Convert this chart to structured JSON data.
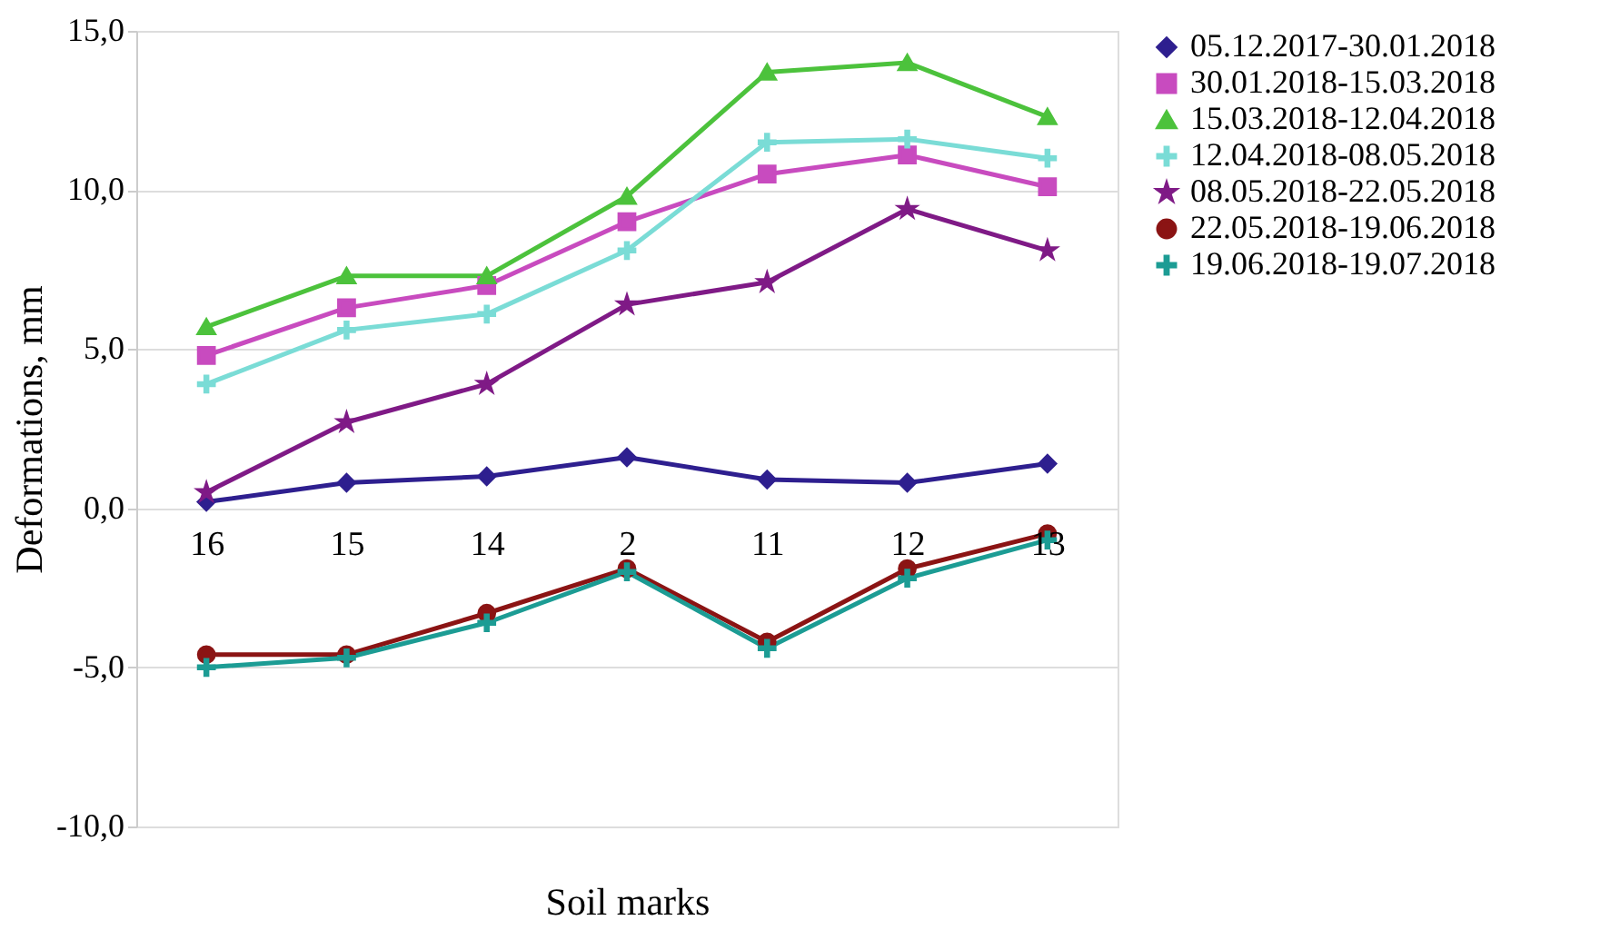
{
  "chart_data": {
    "type": "line",
    "xlabel": "Soil marks",
    "ylabel": "Deformations, mm",
    "categories": [
      "16",
      "15",
      "14",
      "2",
      "11",
      "12",
      "13"
    ],
    "ylim": [
      -10,
      15
    ],
    "yticks": [
      {
        "value": -10,
        "label": "-10,0"
      },
      {
        "value": -5,
        "label": "-5,0"
      },
      {
        "value": 0,
        "label": "0,0"
      },
      {
        "value": 5,
        "label": "5,0"
      },
      {
        "value": 10,
        "label": "10,0"
      },
      {
        "value": 15,
        "label": "15,0"
      }
    ],
    "grid": "y",
    "legend": "right",
    "line_style": "solid",
    "series": [
      {
        "name": "05.12.2017-30.01.2018",
        "color": "#2e1f8f",
        "marker": "diamond",
        "values": [
          0.2,
          0.8,
          1.0,
          1.6,
          0.9,
          0.8,
          1.4
        ]
      },
      {
        "name": "30.01.2018-15.03.2018",
        "color": "#c84bbf",
        "marker": "square",
        "values": [
          4.8,
          6.3,
          7.0,
          9.0,
          10.5,
          11.1,
          10.1
        ]
      },
      {
        "name": "15.03.2018-12.04.2018",
        "color": "#4cc23c",
        "marker": "triangle",
        "values": [
          5.7,
          7.3,
          7.3,
          9.8,
          13.7,
          14.0,
          12.3
        ]
      },
      {
        "name": "12.04.2018-08.05.2018",
        "color": "#7adcd6",
        "marker": "cross",
        "values": [
          3.9,
          5.6,
          6.1,
          8.1,
          11.5,
          11.6,
          11.0
        ]
      },
      {
        "name": "08.05.2018-22.05.2018",
        "color": "#7f1a86",
        "marker": "star",
        "values": [
          0.5,
          2.7,
          3.9,
          6.4,
          7.1,
          9.4,
          8.1
        ]
      },
      {
        "name": "22.05.2018-19.06.2018",
        "color": "#8b1414",
        "marker": "circle",
        "values": [
          -4.6,
          -4.6,
          -3.3,
          -1.9,
          -4.2,
          -1.9,
          -0.8
        ]
      },
      {
        "name": "19.06.2018-19.07.2018",
        "color": "#1c9c94",
        "marker": "cross",
        "values": [
          -5.0,
          -4.7,
          -3.6,
          -2.0,
          -4.4,
          -2.2,
          -1.0
        ]
      }
    ]
  }
}
